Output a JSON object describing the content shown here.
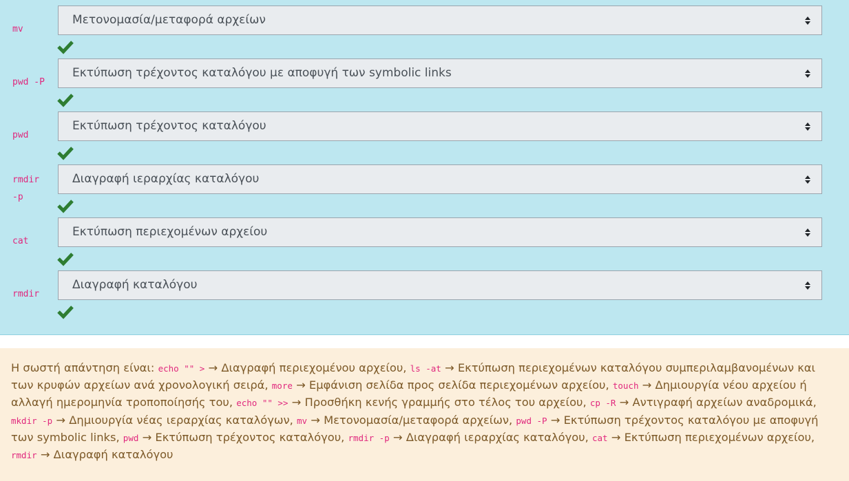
{
  "answers": [
    {
      "command": "mv",
      "selected": "Μετονομασία/μεταφορά αρχείων"
    },
    {
      "command": "pwd -P",
      "selected": "Εκτύπωση τρέχοντος καταλόγου με αποφυγή των symbolic links"
    },
    {
      "command": "pwd",
      "selected": "Εκτύπωση τρέχοντος καταλόγου"
    },
    {
      "command": "rmdir -p",
      "selected": "Διαγραφή ιεραρχίας καταλόγου"
    },
    {
      "command": "cat",
      "selected": "Εκτύπωση περιεχομένων αρχείου"
    },
    {
      "command": "rmdir",
      "selected": "Διαγραφή καταλόγου"
    }
  ],
  "feedback": {
    "intro": "Η σωστή απάντηση είναι: ",
    "pairs": [
      {
        "command": "echo \"\" >",
        "meaning": "Διαγραφή περιεχομένου αρχείου"
      },
      {
        "command": "ls -at",
        "meaning": "Εκτύπωση περιεχομένων καταλόγου συμπεριλαμβανομένων και των κρυφών αρχείων ανά χρονολογική σειρά"
      },
      {
        "command": "more",
        "meaning": "Εμφάνιση σελίδα προς σελίδα περιεχομένων αρχείου"
      },
      {
        "command": "touch",
        "meaning": "Δημιουργία νέου αρχείου ή αλλαγή ημερομηνία τροποποίησής του"
      },
      {
        "command": "echo \"\" >>",
        "meaning": "Προσθήκη κενής γραμμής στο τέλος του αρχείου"
      },
      {
        "command": "cp -R",
        "meaning": "Αντιγραφή αρχείων αναδρομικά"
      },
      {
        "command": "mkdir -p",
        "meaning": "Δημιουργία νέας ιεραρχίας καταλόγων"
      },
      {
        "command": "mv",
        "meaning": "Μετονομασία/μεταφορά αρχείων"
      },
      {
        "command": "pwd -P",
        "meaning": "Εκτύπωση τρέχοντος καταλόγου με αποφυγή των symbolic links"
      },
      {
        "command": "pwd",
        "meaning": "Εκτύπωση τρέχοντος καταλόγου"
      },
      {
        "command": "rmdir -p",
        "meaning": "Διαγραφή ιεραρχίας καταλόγου"
      },
      {
        "command": "cat",
        "meaning": "Εκτύπωση περιεχομένων αρχείου"
      },
      {
        "command": "rmdir",
        "meaning": "Διαγραφή καταλόγου"
      }
    ],
    "arrow": "→",
    "separator": ", "
  },
  "icons": {
    "correct": "check-icon",
    "select_arrows": "sort-arrows-icon"
  },
  "colors": {
    "question_bg": "#bde7f0",
    "feedback_bg": "#fcefdc",
    "feedback_text": "#7d5a29",
    "code": "#e0287d",
    "check": "#2e7d32"
  }
}
